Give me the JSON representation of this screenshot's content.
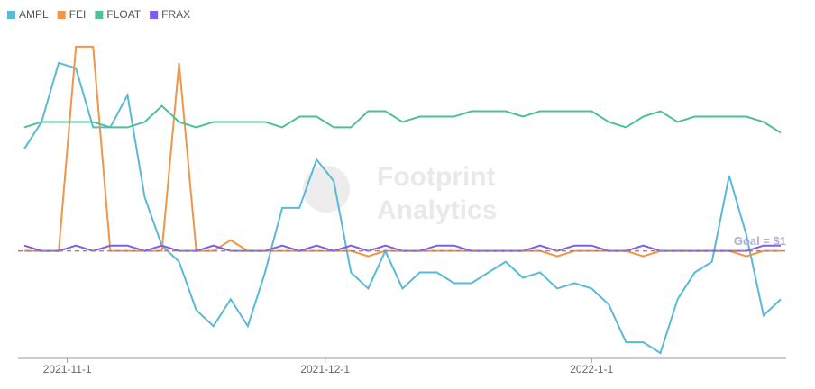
{
  "chart_data": {
    "type": "line",
    "x": [
      "2021-10-27",
      "2021-10-29",
      "2021-10-31",
      "2021-11-2",
      "2021-11-4",
      "2021-11-6",
      "2021-11-8",
      "2021-11-10",
      "2021-11-12",
      "2021-11-14",
      "2021-11-16",
      "2021-11-18",
      "2021-11-20",
      "2021-11-22",
      "2021-11-24",
      "2021-11-26",
      "2021-11-28",
      "2021-11-30",
      "2021-12-2",
      "2021-12-4",
      "2021-12-6",
      "2021-12-8",
      "2021-12-10",
      "2021-12-12",
      "2021-12-14",
      "2021-12-16",
      "2021-12-18",
      "2021-12-20",
      "2021-12-22",
      "2021-12-24",
      "2021-12-26",
      "2021-12-28",
      "2021-12-30",
      "2022-1-1",
      "2022-1-3",
      "2022-1-5",
      "2022-1-7",
      "2022-1-9",
      "2022-1-11",
      "2022-1-13",
      "2022-1-15",
      "2022-1-17",
      "2022-1-19",
      "2022-1-21",
      "2022-1-23"
    ],
    "series": [
      {
        "name": "AMPL",
        "color": "#5ab9d6",
        "values": [
          1.19,
          1.24,
          1.35,
          1.34,
          1.23,
          1.23,
          1.29,
          1.1,
          1.01,
          0.98,
          0.89,
          0.86,
          0.91,
          0.86,
          0.96,
          1.08,
          1.08,
          1.17,
          1.13,
          0.96,
          0.93,
          1.0,
          0.93,
          0.96,
          0.96,
          0.94,
          0.94,
          0.96,
          0.98,
          0.95,
          0.96,
          0.93,
          0.94,
          0.93,
          0.9,
          0.83,
          0.83,
          0.81,
          0.91,
          0.96,
          0.98,
          1.14,
          1.03,
          0.88,
          0.91
        ]
      },
      {
        "name": "FEI",
        "color": "#f0954a",
        "values": [
          1.0,
          1.0,
          1.0,
          1.38,
          1.38,
          1.0,
          1.0,
          1.0,
          1.0,
          1.35,
          1.0,
          1.0,
          1.02,
          1.0,
          1.0,
          1.0,
          1.0,
          1.0,
          1.0,
          1.0,
          0.99,
          1.0,
          1.0,
          1.0,
          1.0,
          1.0,
          1.0,
          1.0,
          1.0,
          1.0,
          1.0,
          0.99,
          1.0,
          1.0,
          1.0,
          1.0,
          0.99,
          1.0,
          1.0,
          1.0,
          1.0,
          1.0,
          0.99,
          1.0,
          1.0
        ]
      },
      {
        "name": "FLOAT",
        "color": "#4dbf99",
        "values": [
          1.23,
          1.24,
          1.24,
          1.24,
          1.24,
          1.23,
          1.23,
          1.24,
          1.27,
          1.24,
          1.23,
          1.24,
          1.24,
          1.24,
          1.24,
          1.23,
          1.25,
          1.25,
          1.23,
          1.23,
          1.26,
          1.26,
          1.24,
          1.25,
          1.25,
          1.25,
          1.26,
          1.26,
          1.26,
          1.25,
          1.26,
          1.26,
          1.26,
          1.26,
          1.24,
          1.23,
          1.25,
          1.26,
          1.24,
          1.25,
          1.25,
          1.25,
          1.25,
          1.24,
          1.22
        ]
      },
      {
        "name": "FRAX",
        "color": "#7b5fe8",
        "values": [
          1.01,
          1.0,
          1.0,
          1.01,
          1.0,
          1.01,
          1.01,
          1.0,
          1.01,
          1.0,
          1.0,
          1.01,
          1.0,
          1.0,
          1.0,
          1.01,
          1.0,
          1.01,
          1.0,
          1.01,
          1.0,
          1.01,
          1.0,
          1.0,
          1.01,
          1.01,
          1.0,
          1.0,
          1.0,
          1.0,
          1.01,
          1.0,
          1.01,
          1.01,
          1.0,
          1.0,
          1.01,
          1.0,
          1.0,
          1.0,
          1.0,
          1.0,
          1.0,
          1.01,
          1.01
        ]
      }
    ],
    "xlim": [
      "2021-10-27",
      "2022-1-23"
    ],
    "xticks": [
      "2021-11-1",
      "2021-12-1",
      "2022-1-1"
    ],
    "ylim": [
      0.8,
      1.4
    ],
    "reference_line": {
      "value": 1,
      "label": "Goal = $1"
    },
    "watermark": [
      "Footprint",
      "Analytics"
    ],
    "legend": "top-left"
  }
}
